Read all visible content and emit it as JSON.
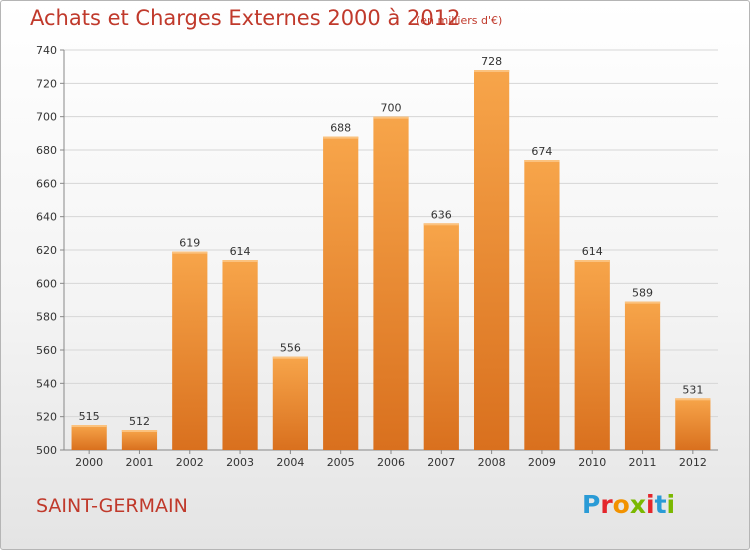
{
  "chart_data": {
    "type": "bar",
    "title": "Achats et Charges Externes 2000 à 2012",
    "subtitle": "(en milliers d'€)",
    "categories": [
      "2000",
      "2001",
      "2002",
      "2003",
      "2004",
      "2005",
      "2006",
      "2007",
      "2008",
      "2009",
      "2010",
      "2011",
      "2012"
    ],
    "values": [
      515,
      512,
      619,
      614,
      556,
      688,
      700,
      636,
      728,
      674,
      614,
      589,
      531
    ],
    "ylim": [
      500,
      740
    ],
    "yticks": [
      500,
      520,
      540,
      560,
      580,
      600,
      620,
      640,
      660,
      680,
      700,
      720,
      740
    ],
    "grid": true,
    "bar_color": "#f39a3c",
    "xlabel": "",
    "ylabel": ""
  },
  "footer": {
    "city": "SAINT-GERMAIN",
    "logo_letters": [
      {
        "ch": "P",
        "color": "#2a9bd6"
      },
      {
        "ch": "r",
        "color": "#e4262c"
      },
      {
        "ch": "o",
        "color": "#f29200"
      },
      {
        "ch": "x",
        "color": "#7ab800"
      },
      {
        "ch": "i",
        "color": "#e4262c"
      },
      {
        "ch": "t",
        "color": "#2a9bd6"
      },
      {
        "ch": "i",
        "color": "#7ab800"
      }
    ]
  }
}
